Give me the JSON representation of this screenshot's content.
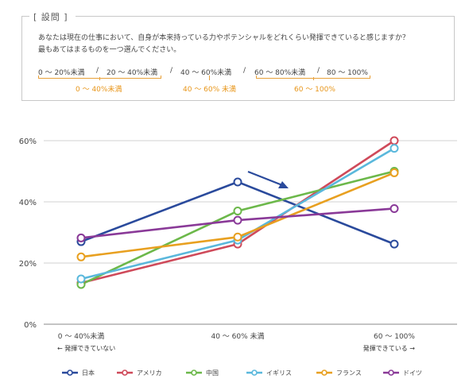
{
  "question": {
    "header": "[ 設問 ]",
    "line1": "あなたは現在の仕事において、自身が本来持っている力やポテンシャルをどれくらい発揮できていると感じますか？",
    "line2": "最もあてはまるものを一つ選んでください。",
    "options": [
      "0 〜 20%未満",
      "20 〜 40%未満",
      "40 〜 60%未満",
      "60 〜 80%未満",
      "80 〜 100%"
    ],
    "separator": "/",
    "groups": [
      "0 〜 40%未満",
      "40 〜 60% 未満",
      "60 〜 100%"
    ],
    "accent_color": "#e8961a"
  },
  "chart_data": {
    "type": "line",
    "categories": [
      "0 〜 40%未満",
      "40 〜 60% 未満",
      "60 〜 100%"
    ],
    "category_sublabels": [
      "← 発揮できていない",
      "",
      "発揮できている →"
    ],
    "yticks": [
      "0%",
      "20%",
      "40%",
      "60%"
    ],
    "ylim": [
      0,
      60
    ],
    "grid": true,
    "series": [
      {
        "name": "日本",
        "color": "#2a4a9c",
        "values": [
          27,
          46.5,
          26.2
        ]
      },
      {
        "name": "アメリカ",
        "color": "#cf4a5a",
        "values": [
          13.5,
          26.2,
          60
        ]
      },
      {
        "name": "中国",
        "color": "#6cb84a",
        "values": [
          13,
          37,
          50
        ]
      },
      {
        "name": "イギリス",
        "color": "#5ab8dc",
        "values": [
          14.8,
          27.5,
          57.5
        ]
      },
      {
        "name": "フランス",
        "color": "#e8a020",
        "values": [
          22,
          28.5,
          49.5
        ]
      },
      {
        "name": "ドイツ",
        "color": "#8a3a98",
        "values": [
          28.2,
          34,
          37.8
        ]
      }
    ],
    "annotation": {
      "type": "arrow",
      "color": "#2a4a9c"
    }
  }
}
